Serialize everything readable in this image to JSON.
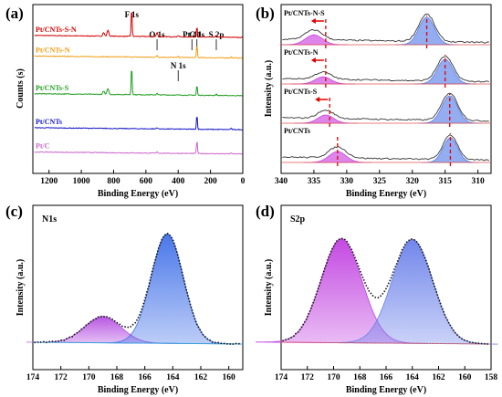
{
  "chart_data": [
    {
      "panel": "(a)",
      "type": "line",
      "title": "",
      "xlabel": "Binding Energy (eV)",
      "ylabel": "Counts (s)",
      "xlim": [
        1300,
        0
      ],
      "xticks": [
        1200,
        1000,
        800,
        600,
        400,
        200,
        0
      ],
      "grid": false,
      "series": [
        {
          "name": "Pt/CNTs-S-N",
          "color": "#d40000",
          "offset": 5.3
        },
        {
          "name": "Pt/CNTs-N",
          "color": "#f39c12",
          "offset": 4.45
        },
        {
          "name": "Pt/CNTs-S",
          "color": "#1f9d1f",
          "offset": 2.9
        },
        {
          "name": "Pt/CNTs",
          "color": "#1616c8",
          "offset": 1.5
        },
        {
          "name": "Pt/C",
          "color": "#cc66cc",
          "offset": 0.5
        }
      ],
      "annotations": [
        {
          "text": "F 1s",
          "x": 688
        },
        {
          "text": "O 1s",
          "x": 531
        },
        {
          "text": "Pt 4d",
          "x": 315
        },
        {
          "text": "N 1s",
          "x": 400
        },
        {
          "text": "C 1s",
          "x": 284
        },
        {
          "text": "S 2p",
          "x": 164
        }
      ]
    },
    {
      "panel": "(b)",
      "type": "line",
      "title": "",
      "xlabel": "Binding Energy (eV)",
      "ylabel": "Intensity (a.u.)",
      "xlim": [
        340,
        308
      ],
      "xticks": [
        340,
        335,
        330,
        325,
        320,
        315,
        310
      ],
      "grid": false,
      "series": [
        {
          "name": "Pt/CNTs-N-S",
          "offset": 3.3,
          "peaks": [
            {
              "center": 335.0,
              "height": 0.18,
              "width": 1.3,
              "color": "#cc44e0"
            },
            {
              "center": 317.8,
              "height": 0.5,
              "width": 1.2,
              "color": "#5b7fe8"
            }
          ],
          "marker": 333.2
        },
        {
          "name": "Pt/CNTs-N",
          "offset": 2.3,
          "peaks": [
            {
              "center": 333.6,
              "height": 0.13,
              "width": 1.2,
              "color": "#cc44e0"
            },
            {
              "center": 315.0,
              "height": 0.45,
              "width": 1.2,
              "color": "#5b7fe8"
            }
          ],
          "marker": 333.2
        },
        {
          "name": "Pt/CNTs-S",
          "offset": 1.3,
          "peaks": [
            {
              "center": 333.2,
              "height": 0.15,
              "width": 1.2,
              "color": "#cc44e0"
            },
            {
              "center": 314.3,
              "height": 0.5,
              "width": 1.2,
              "color": "#5b7fe8"
            }
          ],
          "marker": 332.6
        },
        {
          "name": "Pt/CNTs",
          "offset": 0.3,
          "peaks": [
            {
              "center": 331.4,
              "height": 0.2,
              "width": 1.3,
              "color": "#cc44e0"
            },
            {
              "center": 314.2,
              "height": 0.45,
              "width": 1.1,
              "color": "#5b7fe8"
            }
          ],
          "marker": 331.4
        }
      ]
    },
    {
      "panel": "(c)",
      "type": "line",
      "title": "N1s",
      "xlabel": "Binding Energy (eV)",
      "ylabel": "Intensity (a.u.)",
      "xlim": [
        174,
        159
      ],
      "xticks": [
        174,
        172,
        170,
        168,
        166,
        164,
        162,
        160
      ],
      "grid": false,
      "peaks": [
        {
          "center": 169.0,
          "height": 0.24,
          "width": 1.3,
          "color": "#b44ee0"
        },
        {
          "center": 164.4,
          "height": 1.0,
          "width": 1.15,
          "color": "#4070e8"
        }
      ]
    },
    {
      "panel": "(d)",
      "type": "line",
      "title": "S2p",
      "xlabel": "Binding Energy (eV)",
      "ylabel": "Intensity (a.u.)",
      "xlim": [
        174,
        158
      ],
      "xticks": [
        174,
        172,
        170,
        168,
        166,
        164,
        162,
        160,
        158
      ],
      "grid": false,
      "peaks": [
        {
          "center": 169.4,
          "height": 0.95,
          "width": 1.55,
          "color": "#c040e0"
        },
        {
          "center": 164.0,
          "height": 0.95,
          "width": 1.55,
          "color": "#6a80ea"
        }
      ]
    }
  ]
}
